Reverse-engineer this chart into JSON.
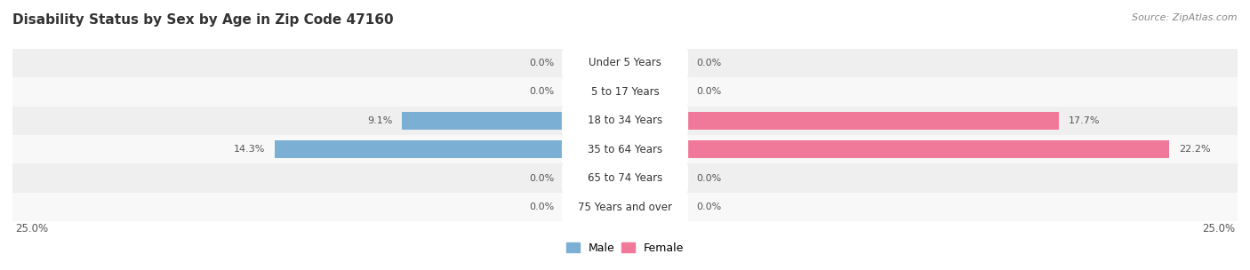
{
  "title": "Disability Status by Sex by Age in Zip Code 47160",
  "source": "Source: ZipAtlas.com",
  "categories": [
    "Under 5 Years",
    "5 to 17 Years",
    "18 to 34 Years",
    "35 to 64 Years",
    "65 to 74 Years",
    "75 Years and over"
  ],
  "male_values": [
    0.0,
    0.0,
    9.1,
    14.3,
    0.0,
    0.0
  ],
  "female_values": [
    0.0,
    0.0,
    17.7,
    22.2,
    0.0,
    0.0
  ],
  "male_color": "#7BAFD4",
  "female_color": "#F07898",
  "male_color_light": "#C5D8ED",
  "female_color_light": "#F5C0CC",
  "bg_row_even": "#EFEFEF",
  "bg_row_odd": "#F8F8F8",
  "bg_color": "#FFFFFF",
  "axis_limit": 25.0,
  "bar_height": 0.6,
  "title_fontsize": 11,
  "source_fontsize": 8,
  "label_fontsize": 8,
  "category_fontsize": 8.5,
  "axis_label_fontsize": 8.5
}
